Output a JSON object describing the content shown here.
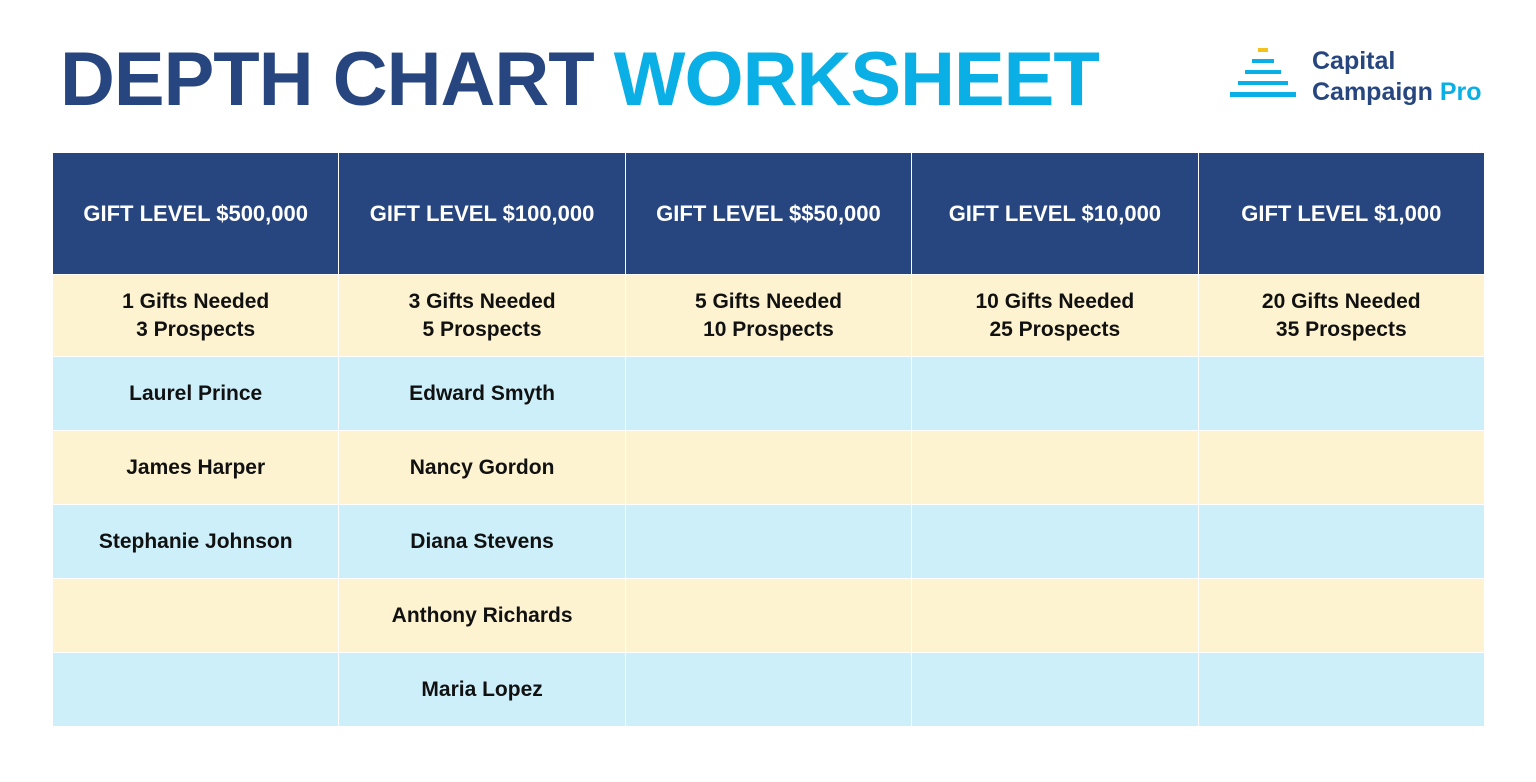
{
  "header": {
    "title_dark": "DEPTH CHART",
    "title_light": "WORKSHEET"
  },
  "logo": {
    "line1": "Capital",
    "line2": "Campaign",
    "line2_accent": "Pro"
  },
  "table": {
    "columns": [
      {
        "header": "GIFT LEVEL $500,000",
        "gifts_needed": "1 Gifts Needed",
        "prospects": "3 Prospects",
        "names": [
          "Laurel Prince",
          "James Harper",
          "Stephanie Johnson"
        ]
      },
      {
        "header": "GIFT LEVEL $100,000",
        "gifts_needed": "3 Gifts Needed",
        "prospects": "5 Prospects",
        "names": [
          "Edward Smyth",
          "Nancy Gordon",
          "Diana Stevens",
          "Anthony Richards",
          "Maria Lopez"
        ]
      },
      {
        "header": "GIFT LEVEL $$50,000",
        "gifts_needed": "5 Gifts Needed",
        "prospects": "10 Prospects",
        "names": []
      },
      {
        "header": "GIFT LEVEL $10,000",
        "gifts_needed": "10 Gifts Needed",
        "prospects": "25 Prospects",
        "names": []
      },
      {
        "header": "GIFT LEVEL $1,000",
        "gifts_needed": "20 Gifts Needed",
        "prospects": "35 Prospects",
        "names": []
      }
    ]
  }
}
